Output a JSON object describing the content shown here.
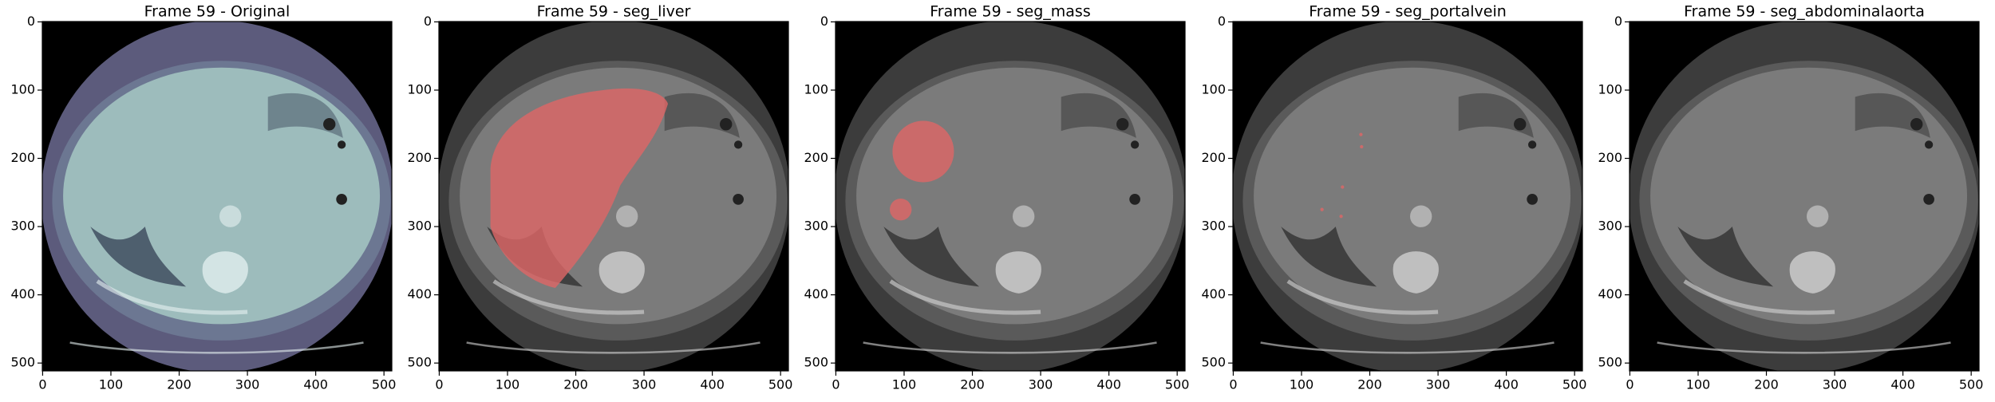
{
  "chart_data": [
    {
      "type": "image",
      "title": "Frame 59 - Original",
      "colormap": "bone",
      "xlim": [
        -0.5,
        511.5
      ],
      "ylim": [
        511.5,
        -0.5
      ],
      "xticks": [
        0,
        100,
        200,
        300,
        400,
        500
      ],
      "yticks": [
        0,
        100,
        200,
        300,
        400,
        500
      ]
    },
    {
      "type": "image",
      "title": "Frame 59 - seg_liver",
      "colormap": "gray",
      "xlim": [
        -0.5,
        511.5
      ],
      "ylim": [
        511.5,
        -0.5
      ],
      "xticks": [
        0,
        100,
        200,
        300,
        400,
        500
      ],
      "yticks": [
        0,
        100,
        200,
        300,
        400,
        500
      ]
    },
    {
      "type": "image",
      "title": "Frame 59 - seg_mass",
      "colormap": "gray",
      "xlim": [
        -0.5,
        511.5
      ],
      "ylim": [
        511.5,
        -0.5
      ],
      "xticks": [
        0,
        100,
        200,
        300,
        400,
        500
      ],
      "yticks": [
        0,
        100,
        200,
        300,
        400,
        500
      ]
    },
    {
      "type": "image",
      "title": "Frame 59 - seg_portalvein",
      "colormap": "gray",
      "xlim": [
        -0.5,
        511.5
      ],
      "ylim": [
        511.5,
        -0.5
      ],
      "xticks": [
        0,
        100,
        200,
        300,
        400,
        500
      ],
      "yticks": [
        0,
        100,
        200,
        300,
        400,
        500
      ]
    },
    {
      "type": "image",
      "title": "Frame 59 - seg_abdominalaorta",
      "colormap": "gray",
      "xlim": [
        -0.5,
        511.5
      ],
      "ylim": [
        511.5,
        -0.5
      ],
      "xticks": [
        0,
        100,
        200,
        300,
        400,
        500
      ],
      "yticks": [
        0,
        100,
        200,
        300,
        400,
        500
      ]
    }
  ]
}
